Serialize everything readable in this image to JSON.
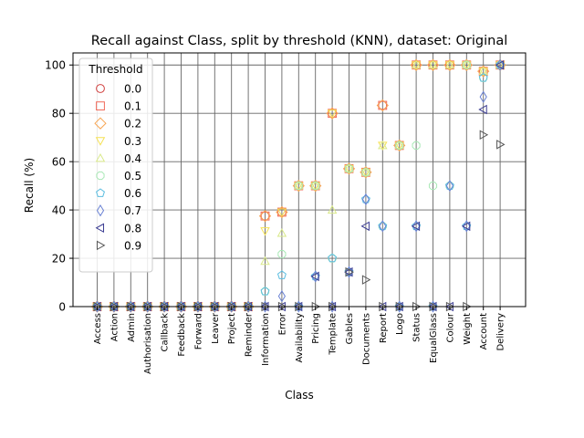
{
  "chart_data": {
    "type": "scatter",
    "title": "Recall against Class, split by threshold (KNN), dataset: Original",
    "xlabel": "Class",
    "ylabel": "Recall (%)",
    "ylim": [
      0,
      105
    ],
    "yticks": [
      0,
      20,
      40,
      60,
      80,
      100
    ],
    "grid": true,
    "legend_title": "Threshold",
    "legend_position": "top-left",
    "categories": [
      "Access",
      "Action",
      "Admin",
      "Authorisation",
      "Callback",
      "Feedback",
      "Forward",
      "Leaver",
      "Project",
      "Reminder",
      "Information",
      "Error",
      "Availability",
      "Pricing",
      "Template",
      "Gables",
      "Documents",
      "Report",
      "Logo",
      "Status",
      "EqualGlass",
      "Colour",
      "Weight",
      "Account",
      "Delivery"
    ],
    "series": [
      {
        "name": "0.0",
        "marker": "circle",
        "color": "#d1403f",
        "values": [
          0,
          0,
          0,
          0,
          0,
          0,
          0,
          0,
          0,
          0,
          37.5,
          39.1,
          50,
          50,
          80,
          57.1,
          55.6,
          83.3,
          66.7,
          100,
          100,
          100,
          100,
          97.4,
          100
        ]
      },
      {
        "name": "0.1",
        "marker": "square",
        "color": "#f06a5a",
        "values": [
          0,
          0,
          0,
          0,
          0,
          0,
          0,
          0,
          0,
          0,
          37.5,
          39.1,
          50,
          50,
          80,
          57.1,
          55.6,
          83.3,
          66.7,
          100,
          100,
          100,
          100,
          97.4,
          100
        ]
      },
      {
        "name": "0.2",
        "marker": "diamond",
        "color": "#f7a552",
        "values": [
          0,
          0,
          0,
          0,
          0,
          0,
          0,
          0,
          0,
          0,
          37.5,
          39.1,
          50,
          50,
          80,
          57.1,
          55.6,
          83.3,
          66.7,
          100,
          100,
          100,
          100,
          97.4,
          100
        ]
      },
      {
        "name": "0.3",
        "marker": "triangle-down",
        "color": "#f5e154",
        "values": [
          0,
          0,
          0,
          0,
          0,
          0,
          0,
          0,
          0,
          0,
          31.3,
          39.1,
          50,
          50,
          80,
          57.1,
          55.6,
          66.7,
          66.7,
          100,
          100,
          100,
          100,
          97.4,
          100
        ]
      },
      {
        "name": "0.4",
        "marker": "triangle-up",
        "color": "#d9e98a",
        "values": [
          0,
          0,
          0,
          0,
          0,
          0,
          0,
          0,
          0,
          0,
          18.8,
          30.4,
          50,
          50,
          40,
          57.1,
          55.6,
          66.7,
          66.7,
          100,
          100,
          100,
          100,
          97.4,
          100
        ]
      },
      {
        "name": "0.5",
        "marker": "octagon",
        "color": "#a8e8b5",
        "values": [
          0,
          0,
          0,
          0,
          0,
          0,
          0,
          0,
          0,
          0,
          6.3,
          21.7,
          50,
          50,
          20,
          57.1,
          55.6,
          33.3,
          66.7,
          66.7,
          50,
          50,
          100,
          94.7,
          100
        ]
      },
      {
        "name": "0.6",
        "marker": "pentagon",
        "color": "#5bbde0",
        "values": [
          0,
          0,
          0,
          0,
          0,
          0,
          0,
          0,
          0,
          0,
          6.3,
          13,
          0,
          12.5,
          20,
          14.3,
          44.4,
          33.3,
          0,
          33.3,
          0,
          50,
          33.3,
          94.7,
          100
        ]
      },
      {
        "name": "0.7",
        "marker": "thin-diamond",
        "color": "#6a82d4",
        "values": [
          0,
          0,
          0,
          0,
          0,
          0,
          0,
          0,
          0,
          0,
          0,
          4.3,
          0,
          12.5,
          0,
          14.3,
          44.4,
          33.3,
          0,
          33.3,
          0,
          50,
          33.3,
          86.8,
          100
        ]
      },
      {
        "name": "0.8",
        "marker": "triangle-left",
        "color": "#3b3c92",
        "values": [
          0,
          0,
          0,
          0,
          0,
          0,
          0,
          0,
          0,
          0,
          0,
          0,
          0,
          12.5,
          0,
          14.3,
          33.3,
          0,
          0,
          33.3,
          0,
          0,
          33.3,
          81.6,
          100
        ]
      },
      {
        "name": "0.9",
        "marker": "triangle-right",
        "color": "#555555",
        "values": [
          0,
          0,
          0,
          0,
          0,
          0,
          0,
          0,
          0,
          0,
          0,
          0,
          0,
          0,
          0,
          14.3,
          11.1,
          0,
          0,
          0,
          0,
          0,
          0,
          71.1,
          67.1
        ]
      }
    ]
  }
}
